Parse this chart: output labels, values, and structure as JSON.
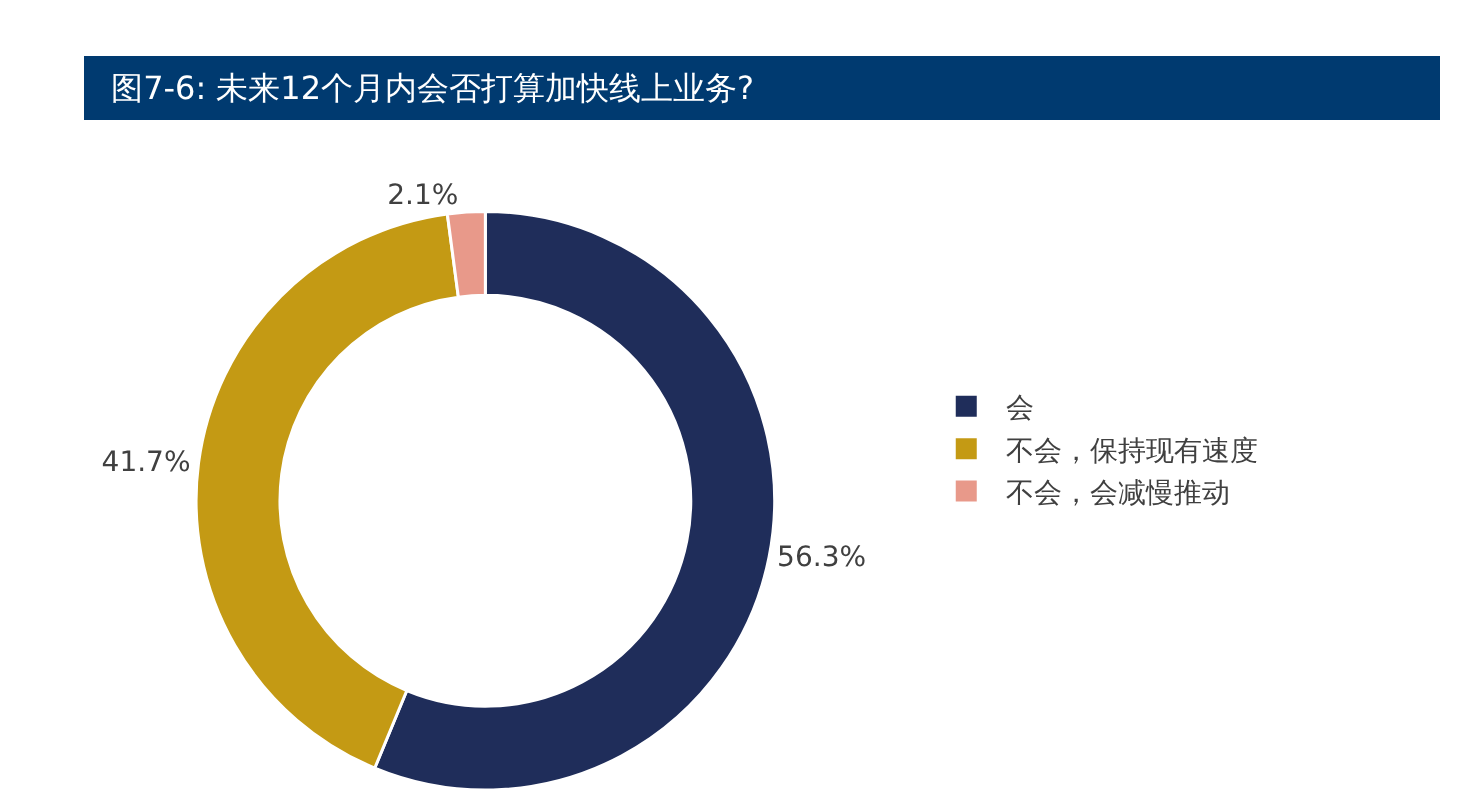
{
  "chart_data": {
    "type": "donut",
    "title": "图7-6: 未来12个月内会否打算加快线上业务?",
    "categories": [
      "会",
      "不会，保持现有速度",
      "不会，会减慢推动"
    ],
    "values": [
      56.3,
      41.7,
      2.1
    ],
    "value_labels": [
      "56.3%",
      "41.7%",
      "2.1%"
    ],
    "colors": [
      "#1f2d5a",
      "#c49a14",
      "#e8998a"
    ],
    "legend": "right"
  }
}
